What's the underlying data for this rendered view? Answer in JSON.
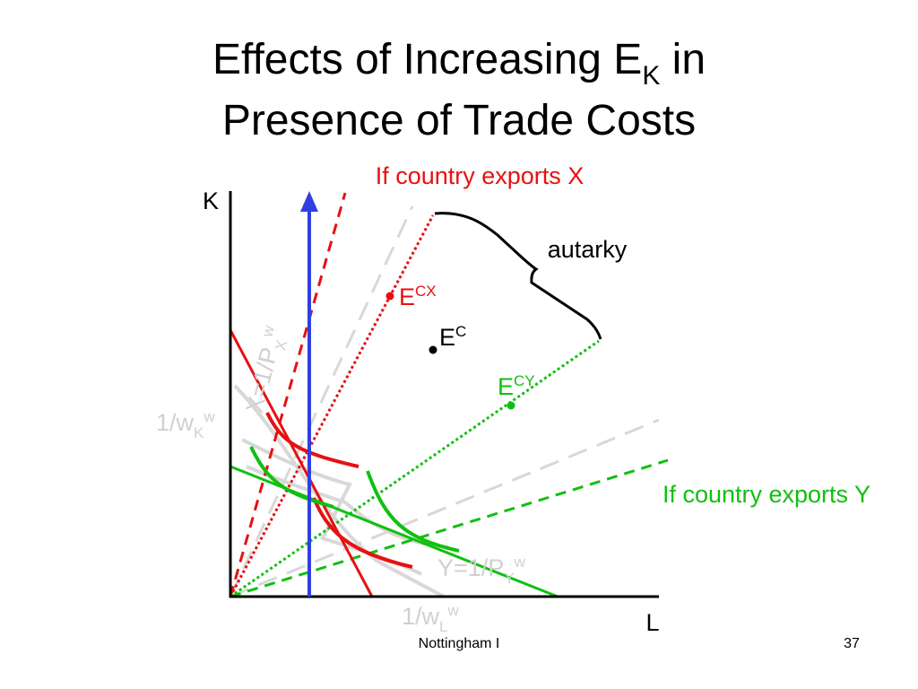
{
  "title": {
    "line1": "Effects of Increasing E",
    "sub": "K",
    "line1_end": " in",
    "line2": "Presence of Trade Costs"
  },
  "labels": {
    "exports_x": "If country exports X",
    "exports_y": "If country exports Y",
    "autarky": "autarky",
    "axis_k": "K",
    "axis_l": "L",
    "ecx": {
      "base": "E",
      "sup": "CX"
    },
    "ec": {
      "base": "E",
      "sup": "C"
    },
    "ecy": {
      "base": "E",
      "sup": "CY"
    },
    "wk": {
      "base": "1/w",
      "sub": "K",
      "sup": "w"
    },
    "x_iso": {
      "base": "X=1/P",
      "sub": "X",
      "sup": "w"
    },
    "y_iso": {
      "base": "Y=1/P",
      "sub": "Y",
      "sup": "w"
    },
    "wl": {
      "base": "1/w",
      "sub": "L",
      "sup": "w"
    }
  },
  "footer": {
    "left": "Nottingham I",
    "page": "37"
  }
}
